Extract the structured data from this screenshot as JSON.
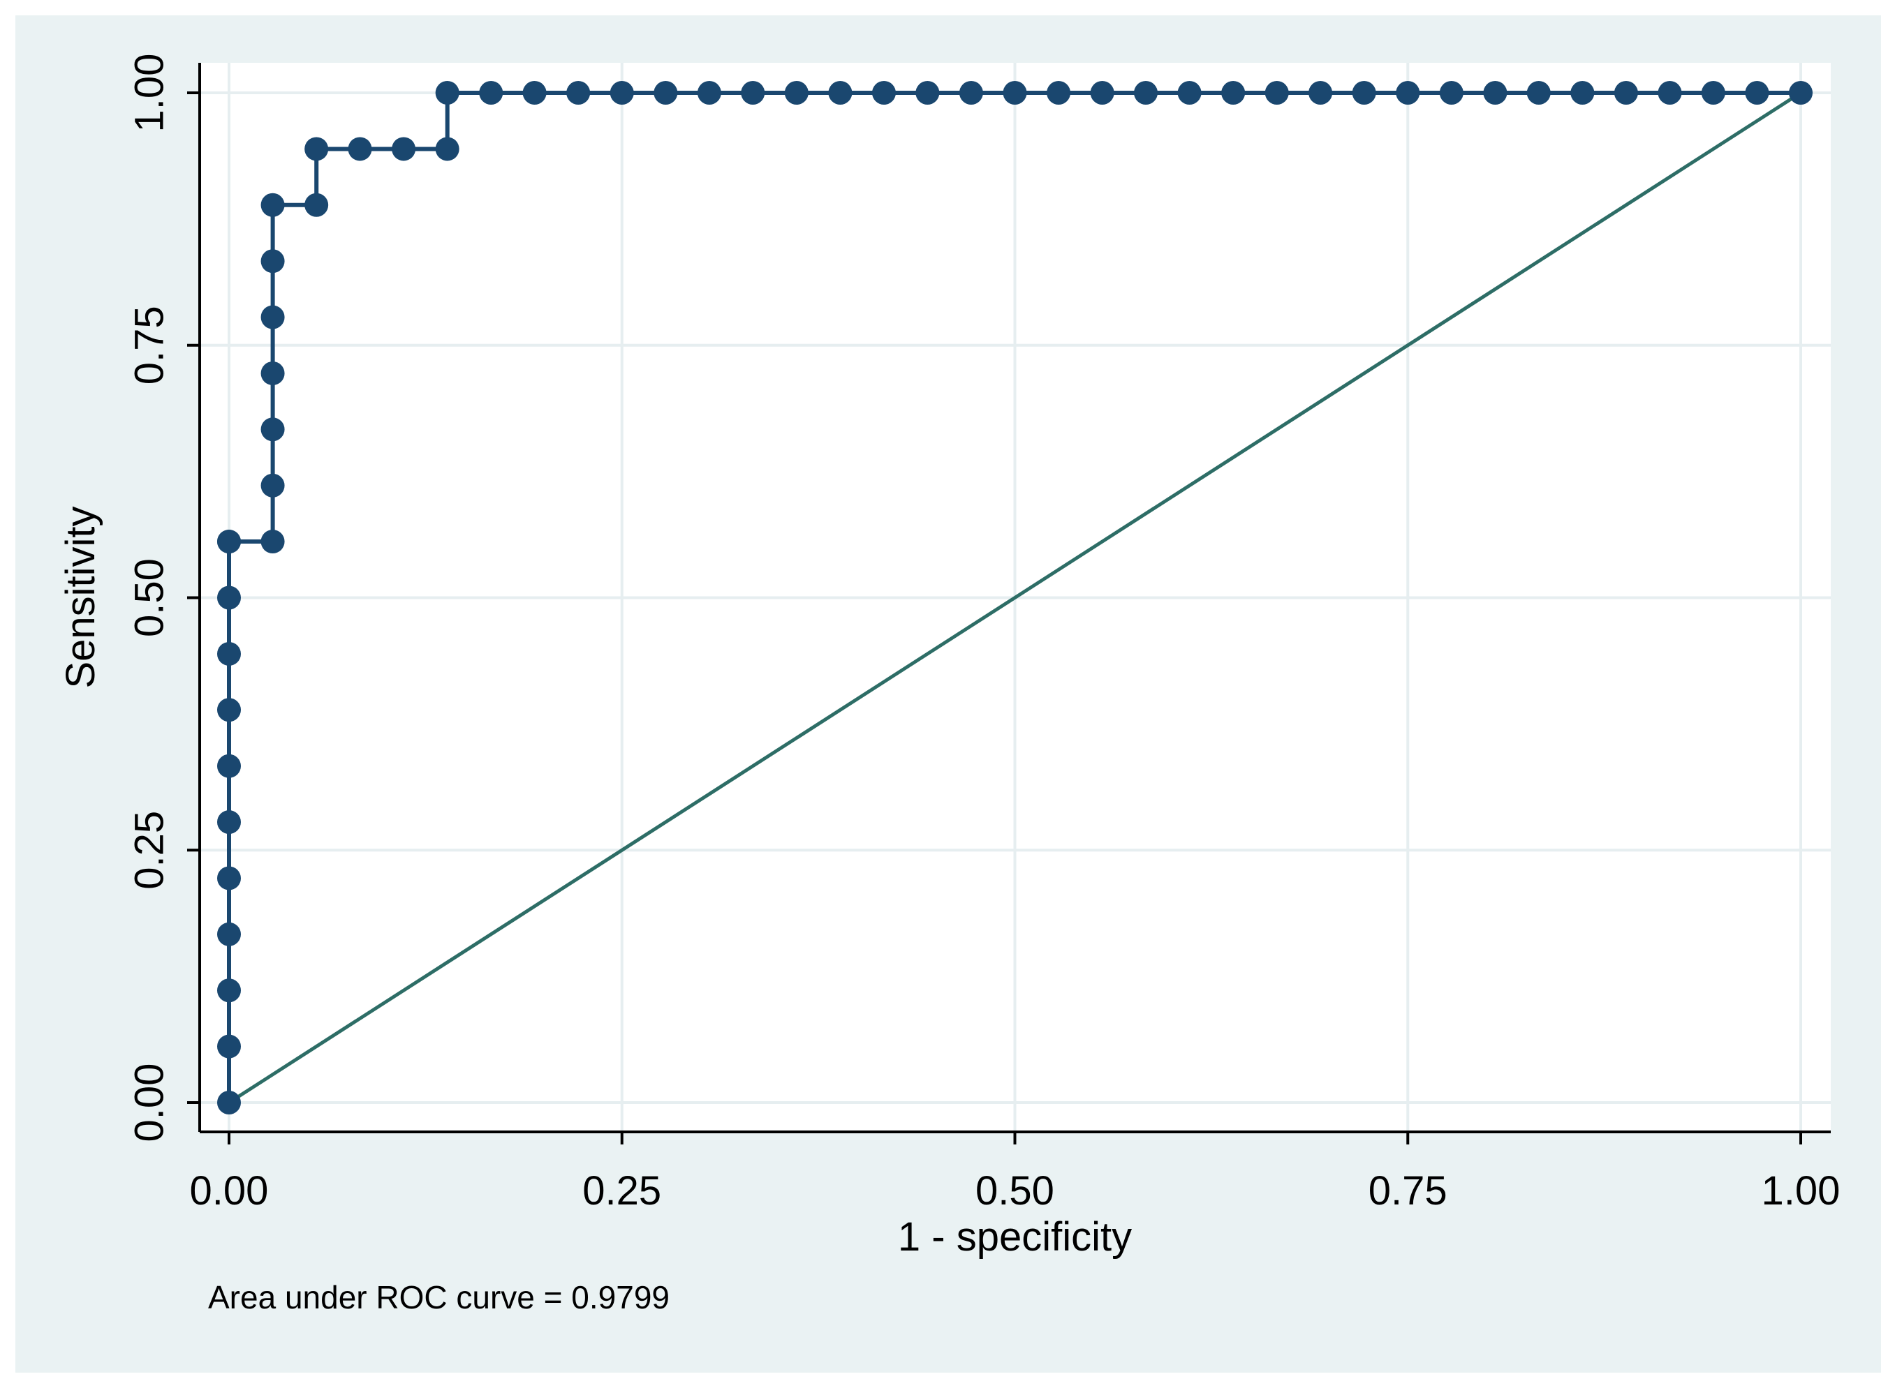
{
  "chart_data": {
    "type": "line",
    "xlabel": "1 - specificity",
    "ylabel": "Sensitivity",
    "xlim": [
      0,
      1
    ],
    "ylim": [
      0,
      1
    ],
    "x_ticks": [
      "0.00",
      "0.25",
      "0.50",
      "0.75",
      "1.00"
    ],
    "y_ticks": [
      "0.00",
      "0.25",
      "0.50",
      "0.75",
      "1.00"
    ],
    "grid": true,
    "note": "Area under ROC curve = 0.9799",
    "colors": {
      "outer_background": "#eaf2f3",
      "plot_background": "#ffffff",
      "grid": "#e6eef0",
      "roc_curve": "#1a476f",
      "reference_line": "#2d6d66",
      "axis": "#000000"
    },
    "series": [
      {
        "type": "step-line-with-markers",
        "x": [
          0,
          0,
          0,
          0,
          0,
          0,
          0,
          0,
          0,
          0,
          0,
          0,
          0.0278,
          0.0278,
          0.0278,
          0.0278,
          0.0278,
          0.0278,
          0.0278,
          0.0556,
          0.0556,
          0.0833,
          0.1111,
          0.1389,
          0.1389,
          0.1667,
          0.1944,
          0.2222,
          0.25,
          0.2778,
          0.3056,
          0.3333,
          0.3611,
          0.3889,
          0.4167,
          0.4444,
          0.4722,
          0.5,
          0.5278,
          0.5556,
          0.5833,
          0.6111,
          0.6389,
          0.6667,
          0.6944,
          0.7222,
          0.75,
          0.7778,
          0.8056,
          0.8333,
          0.8611,
          0.8889,
          0.9167,
          0.9444,
          0.9722,
          1.0
        ],
        "y": [
          0,
          0.0556,
          0.1111,
          0.1667,
          0.2222,
          0.2778,
          0.3333,
          0.3889,
          0.4444,
          0.5,
          0.5556,
          0.5556,
          0.5556,
          0.6111,
          0.6667,
          0.7222,
          0.7778,
          0.8333,
          0.8889,
          0.8889,
          0.9444,
          0.9444,
          0.9444,
          0.9444,
          1,
          1,
          1,
          1,
          1,
          1,
          1,
          1,
          1,
          1,
          1,
          1,
          1,
          1,
          1,
          1,
          1,
          1,
          1,
          1,
          1,
          1,
          1,
          1,
          1,
          1,
          1,
          1,
          1,
          1,
          1,
          1
        ]
      },
      {
        "type": "reference-line",
        "x": [
          0,
          1
        ],
        "y": [
          0,
          1
        ]
      }
    ]
  }
}
